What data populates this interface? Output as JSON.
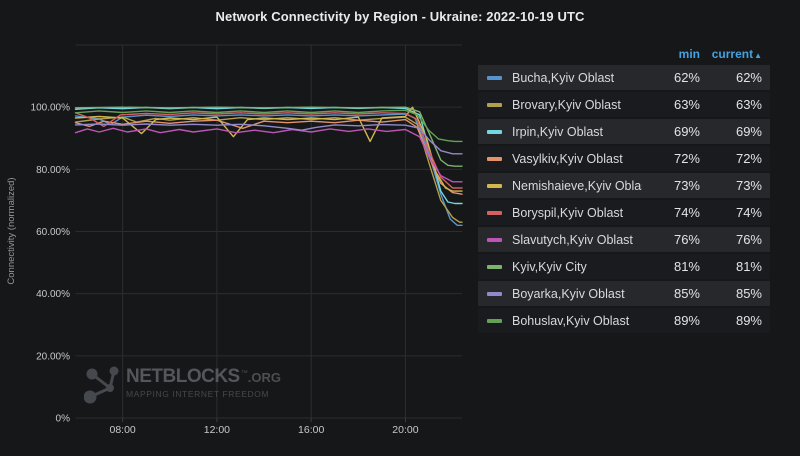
{
  "page": {
    "title": "Network Connectivity by Region - Ukraine: 2022-10-19 UTC"
  },
  "watermark": {
    "brand": "NETBLOCKS",
    "tm": "™",
    "suffix": ".ORG",
    "tagline": "MAPPING INTERNET FREEDOM",
    "icon": "network-nodes-icon",
    "color": "#4b4e53"
  },
  "legend": {
    "min_label": "min",
    "current_label": "current",
    "sort_arrow": "▲",
    "header_color": "#42a2e2"
  },
  "chart_data": {
    "type": "line",
    "title": "Network Connectivity by Region - Ukraine: 2022-10-19 UTC",
    "xlabel": "",
    "ylabel": "Connectivity (normalized)",
    "xlim": [
      6,
      22.4
    ],
    "ylim": [
      0,
      120
    ],
    "grid": true,
    "legend_position": "right",
    "x_ticks": [
      {
        "value": 8,
        "label": "08:00"
      },
      {
        "value": 12,
        "label": "12:00"
      },
      {
        "value": 16,
        "label": "16:00"
      },
      {
        "value": 20,
        "label": "20:00"
      }
    ],
    "y_ticks": [
      {
        "value": 0,
        "label": "0%"
      },
      {
        "value": 20,
        "label": "20.00%"
      },
      {
        "value": 40,
        "label": "40.00%"
      },
      {
        "value": 60,
        "label": "60.00%"
      },
      {
        "value": 80,
        "label": "80.00%"
      },
      {
        "value": 100,
        "label": "100.00%"
      }
    ],
    "series": [
      {
        "name": "Bucha,Kyiv Oblast",
        "color": "#5794ce",
        "min": "62%",
        "current": "62%",
        "points": [
          [
            6,
            97.2
          ],
          [
            7,
            96.2
          ],
          [
            7.5,
            94.5
          ],
          [
            8,
            96.8
          ],
          [
            9,
            97.4
          ],
          [
            10,
            97
          ],
          [
            11,
            97.5
          ],
          [
            12,
            97.2
          ],
          [
            13,
            97.5
          ],
          [
            14,
            97.2
          ],
          [
            15,
            97.5
          ],
          [
            16,
            97.2
          ],
          [
            17,
            97.5
          ],
          [
            18,
            97.2
          ],
          [
            19,
            97.5
          ],
          [
            20,
            97.8
          ],
          [
            20.4,
            96.5
          ],
          [
            21,
            85
          ],
          [
            21.5,
            72
          ],
          [
            21.9,
            64
          ],
          [
            22.2,
            62
          ],
          [
            22.4,
            62
          ]
        ]
      },
      {
        "name": "Brovary,Kyiv Oblast",
        "color": "#b2a04c",
        "min": "63%",
        "current": "63%",
        "points": [
          [
            6,
            95.2
          ],
          [
            7,
            96.2
          ],
          [
            8,
            96.8
          ],
          [
            8.6,
            95.2
          ],
          [
            9.4,
            96.4
          ],
          [
            10,
            95.8
          ],
          [
            11,
            96.6
          ],
          [
            12,
            95.8
          ],
          [
            13,
            96.6
          ],
          [
            14,
            96
          ],
          [
            15,
            96.6
          ],
          [
            16,
            96
          ],
          [
            17,
            96.6
          ],
          [
            18,
            95.8
          ],
          [
            19,
            96.4
          ],
          [
            20,
            96.8
          ],
          [
            20.5,
            94.5
          ],
          [
            21,
            82
          ],
          [
            21.5,
            70
          ],
          [
            22,
            64.5
          ],
          [
            22.3,
            63
          ],
          [
            22.4,
            63
          ]
        ]
      },
      {
        "name": "Irpin,Kyiv Oblast",
        "color": "#73d7de",
        "min": "69%",
        "current": "69%",
        "points": [
          [
            6,
            99.3
          ],
          [
            7,
            99.8
          ],
          [
            8,
            99.5
          ],
          [
            9,
            99.9
          ],
          [
            10,
            99.5
          ],
          [
            11,
            99.9
          ],
          [
            12,
            99.5
          ],
          [
            13,
            99.9
          ],
          [
            14,
            99.6
          ],
          [
            15,
            99.9
          ],
          [
            16,
            99.6
          ],
          [
            17,
            99.9
          ],
          [
            18,
            99.6
          ],
          [
            19,
            99.9
          ],
          [
            20,
            99.6
          ],
          [
            20.6,
            97.5
          ],
          [
            21.1,
            84
          ],
          [
            21.5,
            73
          ],
          [
            21.8,
            69.5
          ],
          [
            22.1,
            69
          ],
          [
            22.4,
            69
          ]
        ]
      },
      {
        "name": "Vasylkiv,Kyiv Oblast",
        "color": "#e2936a",
        "min": "72%",
        "current": "72%",
        "points": [
          [
            6,
            95
          ],
          [
            6.6,
            93.8
          ],
          [
            7.2,
            95.5
          ],
          [
            8,
            94.5
          ],
          [
            9,
            95.5
          ],
          [
            10,
            94.8
          ],
          [
            11,
            95.5
          ],
          [
            12,
            95.8
          ],
          [
            13.1,
            93.2
          ],
          [
            14,
            95.5
          ],
          [
            15,
            95
          ],
          [
            16,
            95.5
          ],
          [
            17,
            95
          ],
          [
            18,
            95.8
          ],
          [
            19,
            95.2
          ],
          [
            20,
            96
          ],
          [
            20.5,
            93.5
          ],
          [
            21,
            84
          ],
          [
            21.5,
            75.5
          ],
          [
            22,
            72.5
          ],
          [
            22.4,
            72
          ]
        ]
      },
      {
        "name": "Nemishaieve,Kyiv Oblast",
        "color": "#d2b74e",
        "min": "73%",
        "current": "73%",
        "points": [
          [
            6,
            96.5
          ],
          [
            7,
            97
          ],
          [
            8,
            96.5
          ],
          [
            8.8,
            91.5
          ],
          [
            9.4,
            96
          ],
          [
            10,
            96.5
          ],
          [
            11,
            96
          ],
          [
            12,
            96.8
          ],
          [
            12.7,
            90.5
          ],
          [
            13.3,
            96
          ],
          [
            14,
            96.5
          ],
          [
            15,
            96
          ],
          [
            16,
            96.5
          ],
          [
            17,
            96
          ],
          [
            18,
            96.8
          ],
          [
            18.5,
            89
          ],
          [
            19,
            96.5
          ],
          [
            20,
            97
          ],
          [
            20.3,
            100
          ],
          [
            20.9,
            90
          ],
          [
            21.3,
            79
          ],
          [
            21.7,
            74
          ],
          [
            22,
            73
          ],
          [
            22.4,
            73
          ]
        ]
      },
      {
        "name": "Boryspil,Kyiv Oblast",
        "color": "#d65f5f",
        "min": "74%",
        "current": "74%",
        "points": [
          [
            6,
            98.2
          ],
          [
            6.6,
            96.5
          ],
          [
            7.2,
            93.8
          ],
          [
            7.9,
            97.5
          ],
          [
            9,
            98
          ],
          [
            10,
            97.6
          ],
          [
            11,
            98.2
          ],
          [
            12,
            97.8
          ],
          [
            13,
            98.2
          ],
          [
            14,
            97.8
          ],
          [
            15,
            98.2
          ],
          [
            16,
            97.8
          ],
          [
            17,
            98.2
          ],
          [
            18,
            97.8
          ],
          [
            19,
            98.2
          ],
          [
            20,
            98
          ],
          [
            20.5,
            96
          ],
          [
            21,
            86
          ],
          [
            21.5,
            77.5
          ],
          [
            22,
            74
          ],
          [
            22.4,
            74
          ]
        ]
      },
      {
        "name": "Slavutych,Kyiv Oblast",
        "color": "#bf54b8",
        "min": "76%",
        "current": "76%",
        "points": [
          [
            6,
            91.8
          ],
          [
            6.5,
            93
          ],
          [
            7,
            92
          ],
          [
            7.6,
            93.2
          ],
          [
            8.2,
            92
          ],
          [
            9,
            93
          ],
          [
            9.6,
            91.8
          ],
          [
            10.4,
            92.8
          ],
          [
            11,
            92
          ],
          [
            12,
            93
          ],
          [
            12.8,
            91.8
          ],
          [
            13.6,
            92.6
          ],
          [
            14.4,
            91.8
          ],
          [
            15.2,
            92.8
          ],
          [
            16,
            92
          ],
          [
            16.8,
            93
          ],
          [
            17.6,
            92.2
          ],
          [
            18.4,
            93
          ],
          [
            19.2,
            92.2
          ],
          [
            20,
            92.8
          ],
          [
            20.6,
            90.5
          ],
          [
            21,
            84
          ],
          [
            21.5,
            78
          ],
          [
            22,
            76
          ],
          [
            22.4,
            76
          ]
        ]
      },
      {
        "name": "Kyiv,Kyiv City",
        "color": "#7eb26d",
        "min": "81%",
        "current": "81%",
        "points": [
          [
            6,
            99.8
          ],
          [
            8,
            100
          ],
          [
            10,
            99.8
          ],
          [
            12,
            100
          ],
          [
            14,
            99.8
          ],
          [
            16,
            100
          ],
          [
            18,
            99.8
          ],
          [
            20,
            100
          ],
          [
            20.6,
            98.5
          ],
          [
            21.1,
            90
          ],
          [
            21.5,
            83
          ],
          [
            21.8,
            81.3
          ],
          [
            22.1,
            81
          ],
          [
            22.4,
            81
          ]
        ]
      },
      {
        "name": "Boyarka,Kyiv Oblast",
        "color": "#9289cc",
        "min": "85%",
        "current": "85%",
        "points": [
          [
            6,
            94.3
          ],
          [
            7,
            94.6
          ],
          [
            8,
            94.2
          ],
          [
            9,
            94.6
          ],
          [
            10,
            94.2
          ],
          [
            11,
            94.5
          ],
          [
            12,
            94.2
          ],
          [
            13,
            94.5
          ],
          [
            14,
            94
          ],
          [
            15,
            93.2
          ],
          [
            15.6,
            92.6
          ],
          [
            16.2,
            93.5
          ],
          [
            17,
            94.3
          ],
          [
            18,
            94
          ],
          [
            19,
            94.4
          ],
          [
            20,
            94.2
          ],
          [
            20.6,
            93.2
          ],
          [
            21,
            89.5
          ],
          [
            21.5,
            86
          ],
          [
            22,
            85
          ],
          [
            22.4,
            85
          ]
        ]
      },
      {
        "name": "Bohuslav,Kyiv Oblast",
        "color": "#62a156",
        "min": "89%",
        "current": "89%",
        "points": [
          [
            6,
            98.2
          ],
          [
            7,
            98.8
          ],
          [
            8,
            98.3
          ],
          [
            9,
            98.8
          ],
          [
            10,
            98.3
          ],
          [
            11,
            98.8
          ],
          [
            12,
            98.3
          ],
          [
            13,
            98.8
          ],
          [
            14,
            98.3
          ],
          [
            15,
            98.8
          ],
          [
            16,
            98.3
          ],
          [
            17,
            98.8
          ],
          [
            18,
            98.3
          ],
          [
            19,
            98.8
          ],
          [
            20,
            99
          ],
          [
            20.5,
            97.5
          ],
          [
            21,
            92.5
          ],
          [
            21.4,
            89.8
          ],
          [
            21.8,
            89.2
          ],
          [
            22.1,
            89
          ],
          [
            22.4,
            89
          ]
        ]
      }
    ],
    "style": {
      "background": "#161718",
      "grid_color": "#2b2d31",
      "tick_color": "#c8c9ca",
      "axis_label_color": "#96989c",
      "line_width": 1.4
    }
  }
}
